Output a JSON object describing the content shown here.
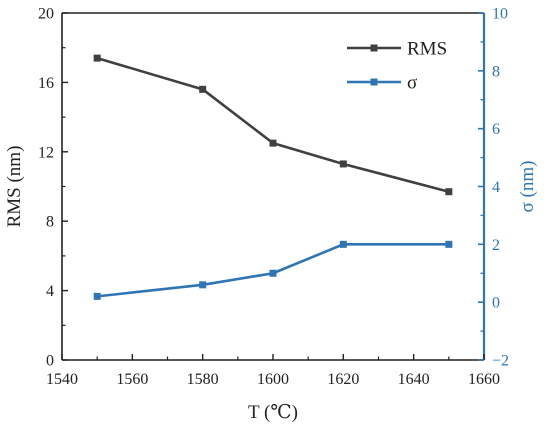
{
  "chart_data": {
    "type": "line",
    "x": [
      1550,
      1580,
      1600,
      1620,
      1650
    ],
    "xlabel": "T (℃)",
    "xlim": [
      1540,
      1660
    ],
    "x_ticks": [
      1540,
      1560,
      1580,
      1600,
      1620,
      1640,
      1660
    ],
    "y_left": {
      "label": "RMS (nm)",
      "lim": [
        0,
        20
      ],
      "ticks": [
        0,
        4,
        8,
        12,
        16,
        20
      ]
    },
    "y_right": {
      "label": "σ (nm)",
      "lim": [
        -2,
        10
      ],
      "ticks": [
        -2,
        0,
        2,
        4,
        6,
        8,
        10
      ],
      "color": "#2e75b6"
    },
    "series": [
      {
        "name": "RMS",
        "axis": "left",
        "color": "#404040",
        "marker": "square",
        "values": [
          17.4,
          15.6,
          12.5,
          11.3,
          9.7
        ]
      },
      {
        "name": "σ",
        "axis": "right",
        "color": "#2e75b6",
        "marker": "square",
        "values": [
          0.2,
          0.6,
          1.0,
          2.0,
          2.0
        ]
      }
    ],
    "legend_position": "top-right",
    "grid": false
  }
}
